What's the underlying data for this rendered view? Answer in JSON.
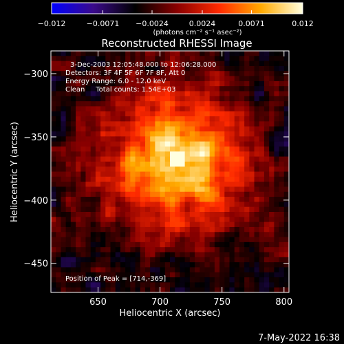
{
  "colorbar": {
    "min": -0.012,
    "max": 0.012,
    "tick_labels": [
      "−0.012",
      "−0.0071",
      "−0.0024",
      "0.0024",
      "0.0071",
      "0.012"
    ],
    "tick_values": [
      -0.012,
      -0.0071,
      -0.0024,
      0.0024,
      0.0071,
      0.012
    ],
    "units_label": "(photons cm⁻² s⁻¹ asec⁻²)",
    "colormap_stops": [
      "#0000ff",
      "#3a0a8a",
      "#000000",
      "#8a0000",
      "#ff2a00",
      "#ffaa00",
      "#ffffe0"
    ]
  },
  "chart_data": {
    "type": "heatmap",
    "title": "Reconstructed RHESSI Image",
    "xlabel": "Heliocentric X (arcsec)",
    "ylabel": "Heliocentric Y (arcsec)",
    "xlim": [
      612,
      804
    ],
    "ylim": [
      -473,
      -282
    ],
    "x_ticks": [
      650,
      700,
      750,
      800
    ],
    "y_ticks": [
      -300,
      -350,
      -400,
      -450
    ],
    "x_tick_labels": [
      "650",
      "700",
      "750",
      "800"
    ],
    "y_tick_labels": [
      "−300",
      "−350",
      "−400",
      "−450"
    ],
    "peak": [
      714,
      -369
    ],
    "peak_value": 0.012,
    "info_lines": [
      "3-Dec-2003 12:05:48.000 to 12:06:28.000",
      "Detectors: 3F 4F 5F 6F 7F 8F, Att 0",
      "Energy Range: 6.0 - 12.0 keV",
      "Clean     Total counts: 1.54E+03"
    ],
    "peak_label": "Position of Peak = [714,-369]"
  },
  "footer": {
    "timestamp": "7-May-2022 16:38"
  }
}
